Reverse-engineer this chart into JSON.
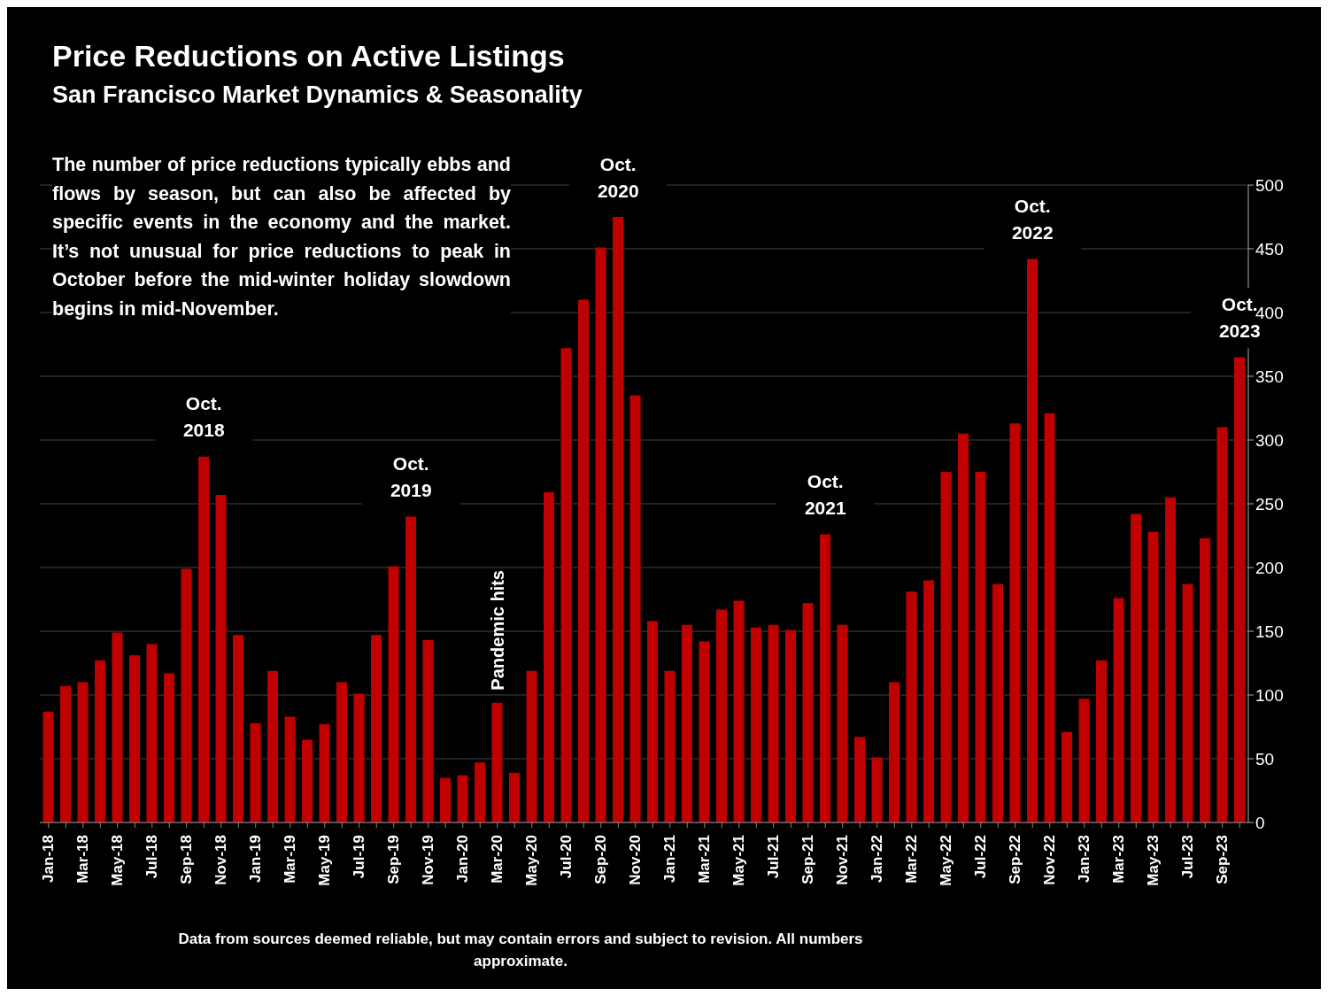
{
  "chart_data": {
    "type": "bar",
    "title": "Price Reductions on Active Listings",
    "subtitle": "San Francisco Market Dynamics & Seasonality",
    "categories": [
      "Jan-18",
      null,
      "Mar-18",
      null,
      "May-18",
      null,
      "Jul-18",
      null,
      "Sep-18",
      null,
      "Nov-18",
      null,
      "Jan-19",
      null,
      "Mar-19",
      null,
      "May-19",
      null,
      "Jul-19",
      null,
      "Sep-19",
      null,
      "Nov-19",
      null,
      "Jan-20",
      null,
      "Mar-20",
      null,
      "May-20",
      null,
      "Jul-20",
      null,
      "Sep-20",
      null,
      "Nov-20",
      null,
      "Jan-21",
      null,
      "Mar-21",
      null,
      "May-21",
      null,
      "Jul-21",
      null,
      "Sep-21",
      null,
      "Nov-21",
      null,
      "Jan-22",
      null,
      "Mar-22",
      null,
      "May-22",
      null,
      "Jul-22",
      null,
      "Sep-22",
      null,
      "Nov-22",
      null,
      "Jan-23",
      null,
      "Mar-23",
      null,
      "May-23",
      null,
      "Jul-23",
      null,
      "Sep-23",
      null
    ],
    "values": [
      87,
      107,
      110,
      127,
      149,
      131,
      140,
      117,
      199,
      287,
      257,
      147,
      78,
      119,
      83,
      65,
      77,
      110,
      101,
      147,
      201,
      240,
      143,
      35,
      37,
      47,
      94,
      39,
      119,
      259,
      372,
      410,
      451,
      475,
      335,
      158,
      119,
      155,
      142,
      167,
      174,
      153,
      155,
      151,
      172,
      226,
      155,
      67,
      51,
      110,
      181,
      190,
      275,
      305,
      275,
      187,
      313,
      442,
      321,
      71,
      97,
      127,
      176,
      242,
      228,
      255,
      187,
      223,
      310,
      365
    ],
    "color": "#c00000",
    "ylim": [
      0,
      500
    ],
    "yticks": [
      0,
      50,
      100,
      150,
      200,
      250,
      300,
      350,
      400,
      450,
      500
    ],
    "grid": "y",
    "annotations": [
      "The number of price reductions typically ebbs and flows by season, but can also be affected by specific events in the economy and the market. It’s not unusual for price reductions to peak in October before the mid-winter holiday slowdown begins in mid-November.",
      {
        "text": "Oct. 2018",
        "y": 287
      },
      {
        "text": "Oct. 2019",
        "y": 240
      },
      {
        "text": "Oct. 2020",
        "y": 475
      },
      {
        "text": "Oct. 2021",
        "y": 226
      },
      {
        "text": "Oct. 2022",
        "y": 442
      },
      {
        "text": "Oct. 2023",
        "y": 365
      },
      {
        "text": "Pandemic hits",
        "x": "Mar-20",
        "y": 94
      },
      "Data from sources deemed reliable, but may contain errors and subject to revision. All numbers approximate."
    ]
  }
}
